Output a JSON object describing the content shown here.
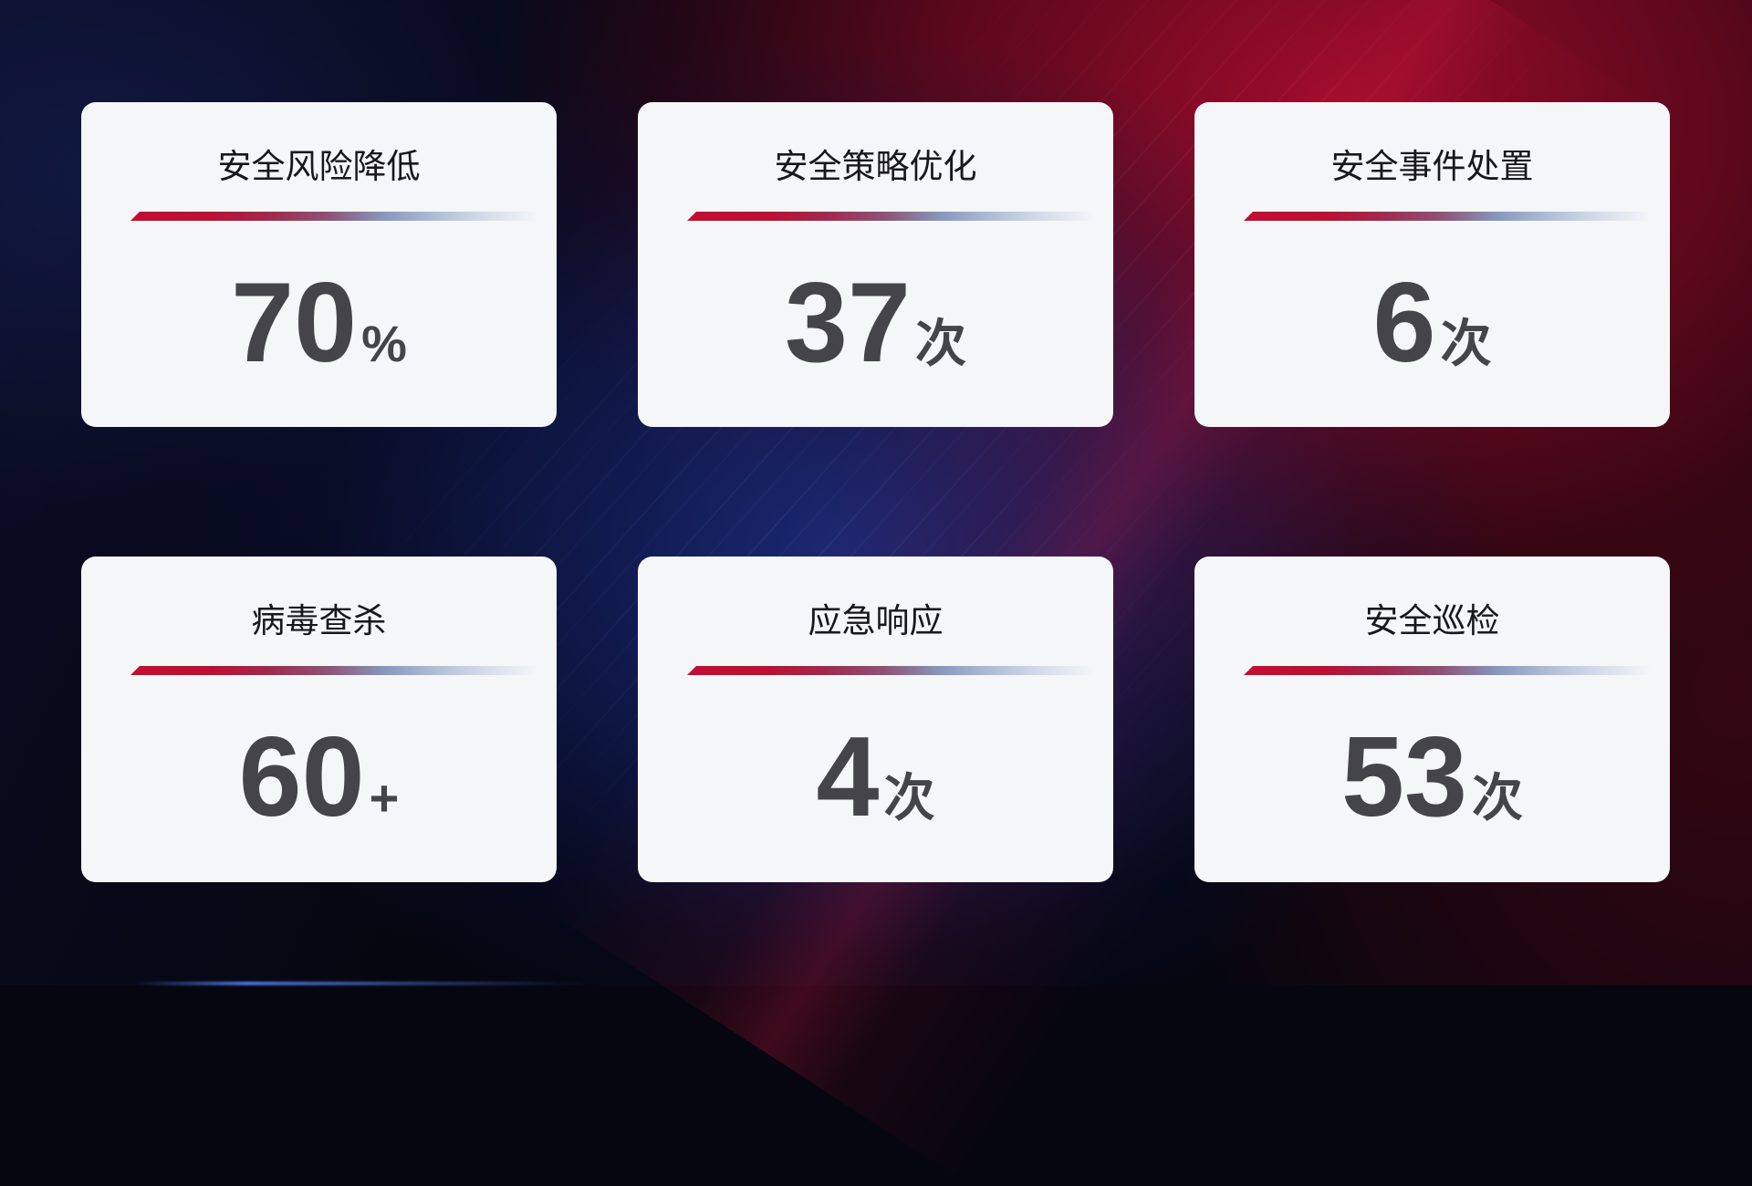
{
  "cards": [
    {
      "title": "安全风险降低",
      "value": "70",
      "suffix": "%"
    },
    {
      "title": "安全策略优化",
      "value": "37",
      "suffix": "次"
    },
    {
      "title": "安全事件处置",
      "value": "6",
      "suffix": "次"
    },
    {
      "title": "病毒查杀",
      "value": "60",
      "suffix": "+"
    },
    {
      "title": "应急响应",
      "value": "4",
      "suffix": "次"
    },
    {
      "title": "安全巡检",
      "value": "53",
      "suffix": "次"
    }
  ],
  "colors": {
    "card-bg": "#f5f6f8",
    "title-color": "#17171c",
    "value-color": "#454549",
    "accent-red": "#c40e31",
    "accent-steel-blue": "#8fa3c8",
    "bg-base": "#05060f"
  }
}
